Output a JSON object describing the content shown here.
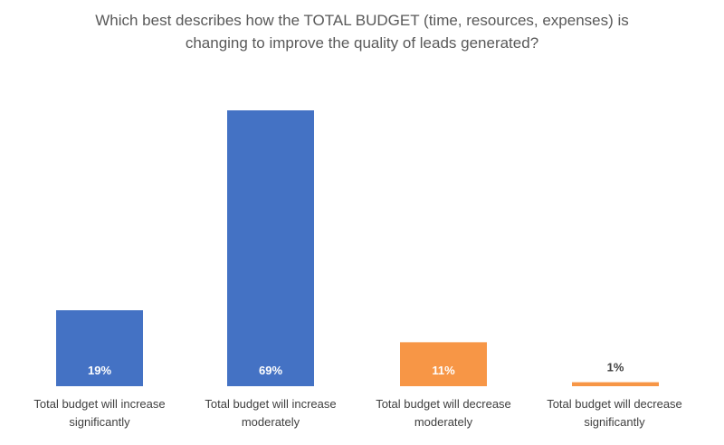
{
  "chart_data": {
    "type": "bar",
    "title_lines": [
      "Which best describes how the TOTAL BUDGET (time, resources, expenses) is",
      "changing to improve the quality of leads generated?"
    ],
    "categories": [
      [
        "Total budget will increase",
        "significantly"
      ],
      [
        "Total budget will increase",
        "moderately"
      ],
      [
        "Total budget will decrease",
        "moderately"
      ],
      [
        "Total budget will decrease",
        "significantly"
      ]
    ],
    "values": [
      19,
      69,
      11,
      1
    ],
    "data_labels": [
      "19%",
      "69%",
      "11%",
      "1%"
    ],
    "colors": [
      "#4472c4",
      "#4472c4",
      "#f79646",
      "#f79646"
    ],
    "ylim": [
      0,
      69
    ],
    "grid": false,
    "legend": "none"
  }
}
